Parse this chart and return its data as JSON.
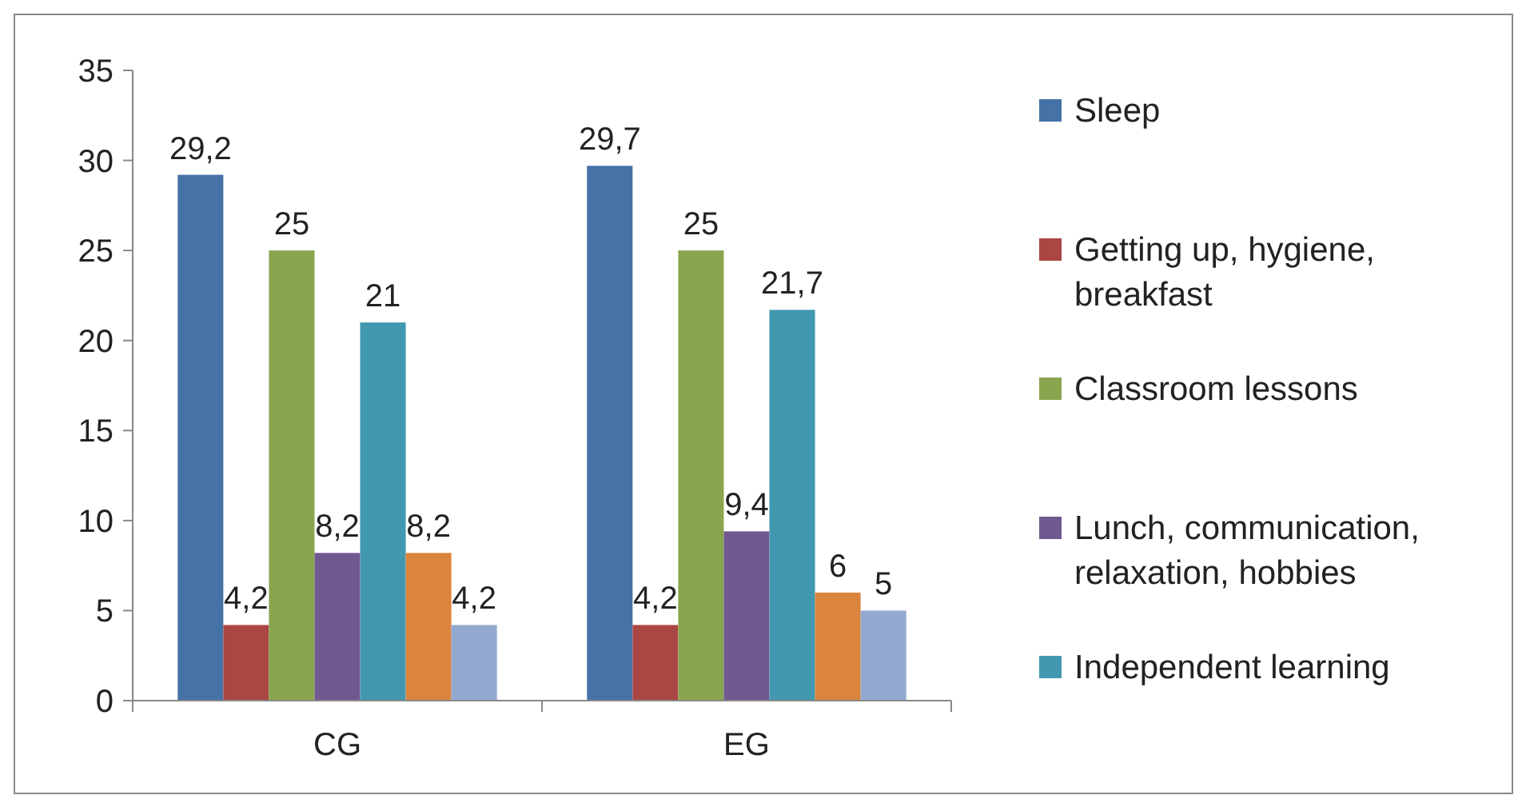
{
  "chart_data": {
    "type": "bar",
    "categories": [
      "CG",
      "EG"
    ],
    "ylim": [
      0,
      35
    ],
    "yticks": [
      0,
      5,
      10,
      15,
      20,
      25,
      30,
      35
    ],
    "grid": false,
    "legend": "right",
    "series": [
      {
        "name": "Sleep",
        "color": "#4572a7",
        "values": [
          29.2,
          29.7
        ],
        "value_labels": [
          "29,2",
          "29,7"
        ]
      },
      {
        "name": "Getting up, hygiene, breakfast",
        "color": "#aa4643",
        "values": [
          4.2,
          4.2
        ],
        "value_labels": [
          "4,2",
          "4,2"
        ]
      },
      {
        "name": "Classroom lessons",
        "color": "#89a54e",
        "values": [
          25,
          25
        ],
        "value_labels": [
          "25",
          "25"
        ]
      },
      {
        "name": "Lunch, communication, relaxation, hobbies",
        "color": "#71588f",
        "values": [
          8.2,
          9.4
        ],
        "value_labels": [
          "8,2",
          "9,4"
        ]
      },
      {
        "name": "Independent learning",
        "color": "#4198af",
        "values": [
          21,
          21.7
        ],
        "value_labels": [
          "21",
          "21,7"
        ]
      },
      {
        "color": "#db843d",
        "values": [
          8.2,
          6
        ],
        "value_labels": [
          "8,2",
          "6"
        ]
      },
      {
        "color": "#93a9cf",
        "values": [
          4.2,
          5
        ],
        "value_labels": [
          "4,2",
          "5"
        ]
      }
    ]
  }
}
